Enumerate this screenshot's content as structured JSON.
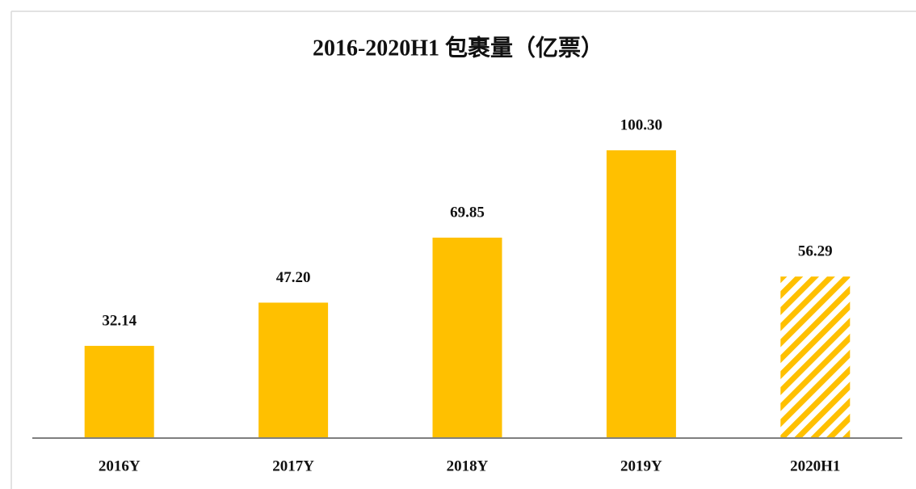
{
  "chart_data": {
    "type": "bar",
    "title": "2016-2020H1 包裹量（亿票）",
    "categories": [
      "2016Y",
      "2017Y",
      "2018Y",
      "2019Y",
      "2020H1"
    ],
    "values": [
      32.14,
      47.2,
      69.85,
      100.3,
      56.29
    ],
    "value_labels": [
      "32.14",
      "47.20",
      "69.85",
      "100.30",
      "56.29"
    ],
    "color": "#FFC000",
    "hatch": [
      false,
      false,
      false,
      false,
      true
    ],
    "ylim": [
      0,
      120
    ]
  }
}
